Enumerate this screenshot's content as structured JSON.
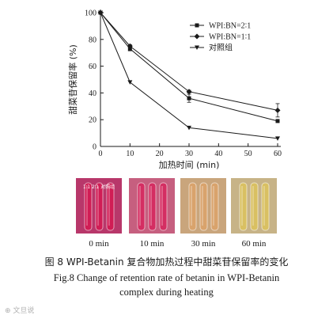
{
  "chart_data": {
    "type": "line",
    "xlabel": "加热时间 (min)",
    "ylabel": "甜菜苷保留率 (%)",
    "xlim": [
      0,
      60
    ],
    "ylim": [
      0,
      100
    ],
    "xticks": [
      0,
      10,
      20,
      30,
      40,
      50,
      60
    ],
    "yticks": [
      0,
      20,
      40,
      60,
      80,
      100
    ],
    "x": [
      0,
      10,
      30,
      60
    ],
    "grid": false,
    "legend_position": "top-right",
    "series": [
      {
        "name": "WPI:BN=2∶1",
        "marker": "square",
        "values": [
          100,
          73,
          36,
          19
        ],
        "error": [
          0,
          1.5,
          3,
          1
        ]
      },
      {
        "name": "WPI:BN=1∶1",
        "marker": "diamond",
        "values": [
          100,
          75,
          41,
          27
        ],
        "error": [
          0,
          1,
          1,
          5
        ]
      },
      {
        "name": "对照组",
        "marker": "triangle-down",
        "values": [
          100,
          48,
          14,
          6
        ],
        "error": [
          0,
          0,
          0,
          0
        ]
      }
    ]
  },
  "photos": [
    {
      "label": "0 min",
      "bg": "#b8376a",
      "liquid": "#d01d55",
      "tube_text": "1∶1  2∶1 对照组"
    },
    {
      "label": "10 min",
      "bg": "#c65f7f",
      "liquid": "#d42e62",
      "tube_text": ""
    },
    {
      "label": "30 min",
      "bg": "#c9a57c",
      "liquid": "#d9a36c",
      "tube_text": ""
    },
    {
      "label": "60 min",
      "bg": "#c7b387",
      "liquid": "#d9c062",
      "tube_text": ""
    }
  ],
  "caption": {
    "zh": "图 8    WPI-Betanin 复合物加热过程中甜菜苷保留率的变化",
    "en_line1": "Fig.8    Change of retention rate of betanin in WPI-Betanin",
    "en_line2": "complex during heating"
  },
  "watermark": "⊕ 文旦说"
}
